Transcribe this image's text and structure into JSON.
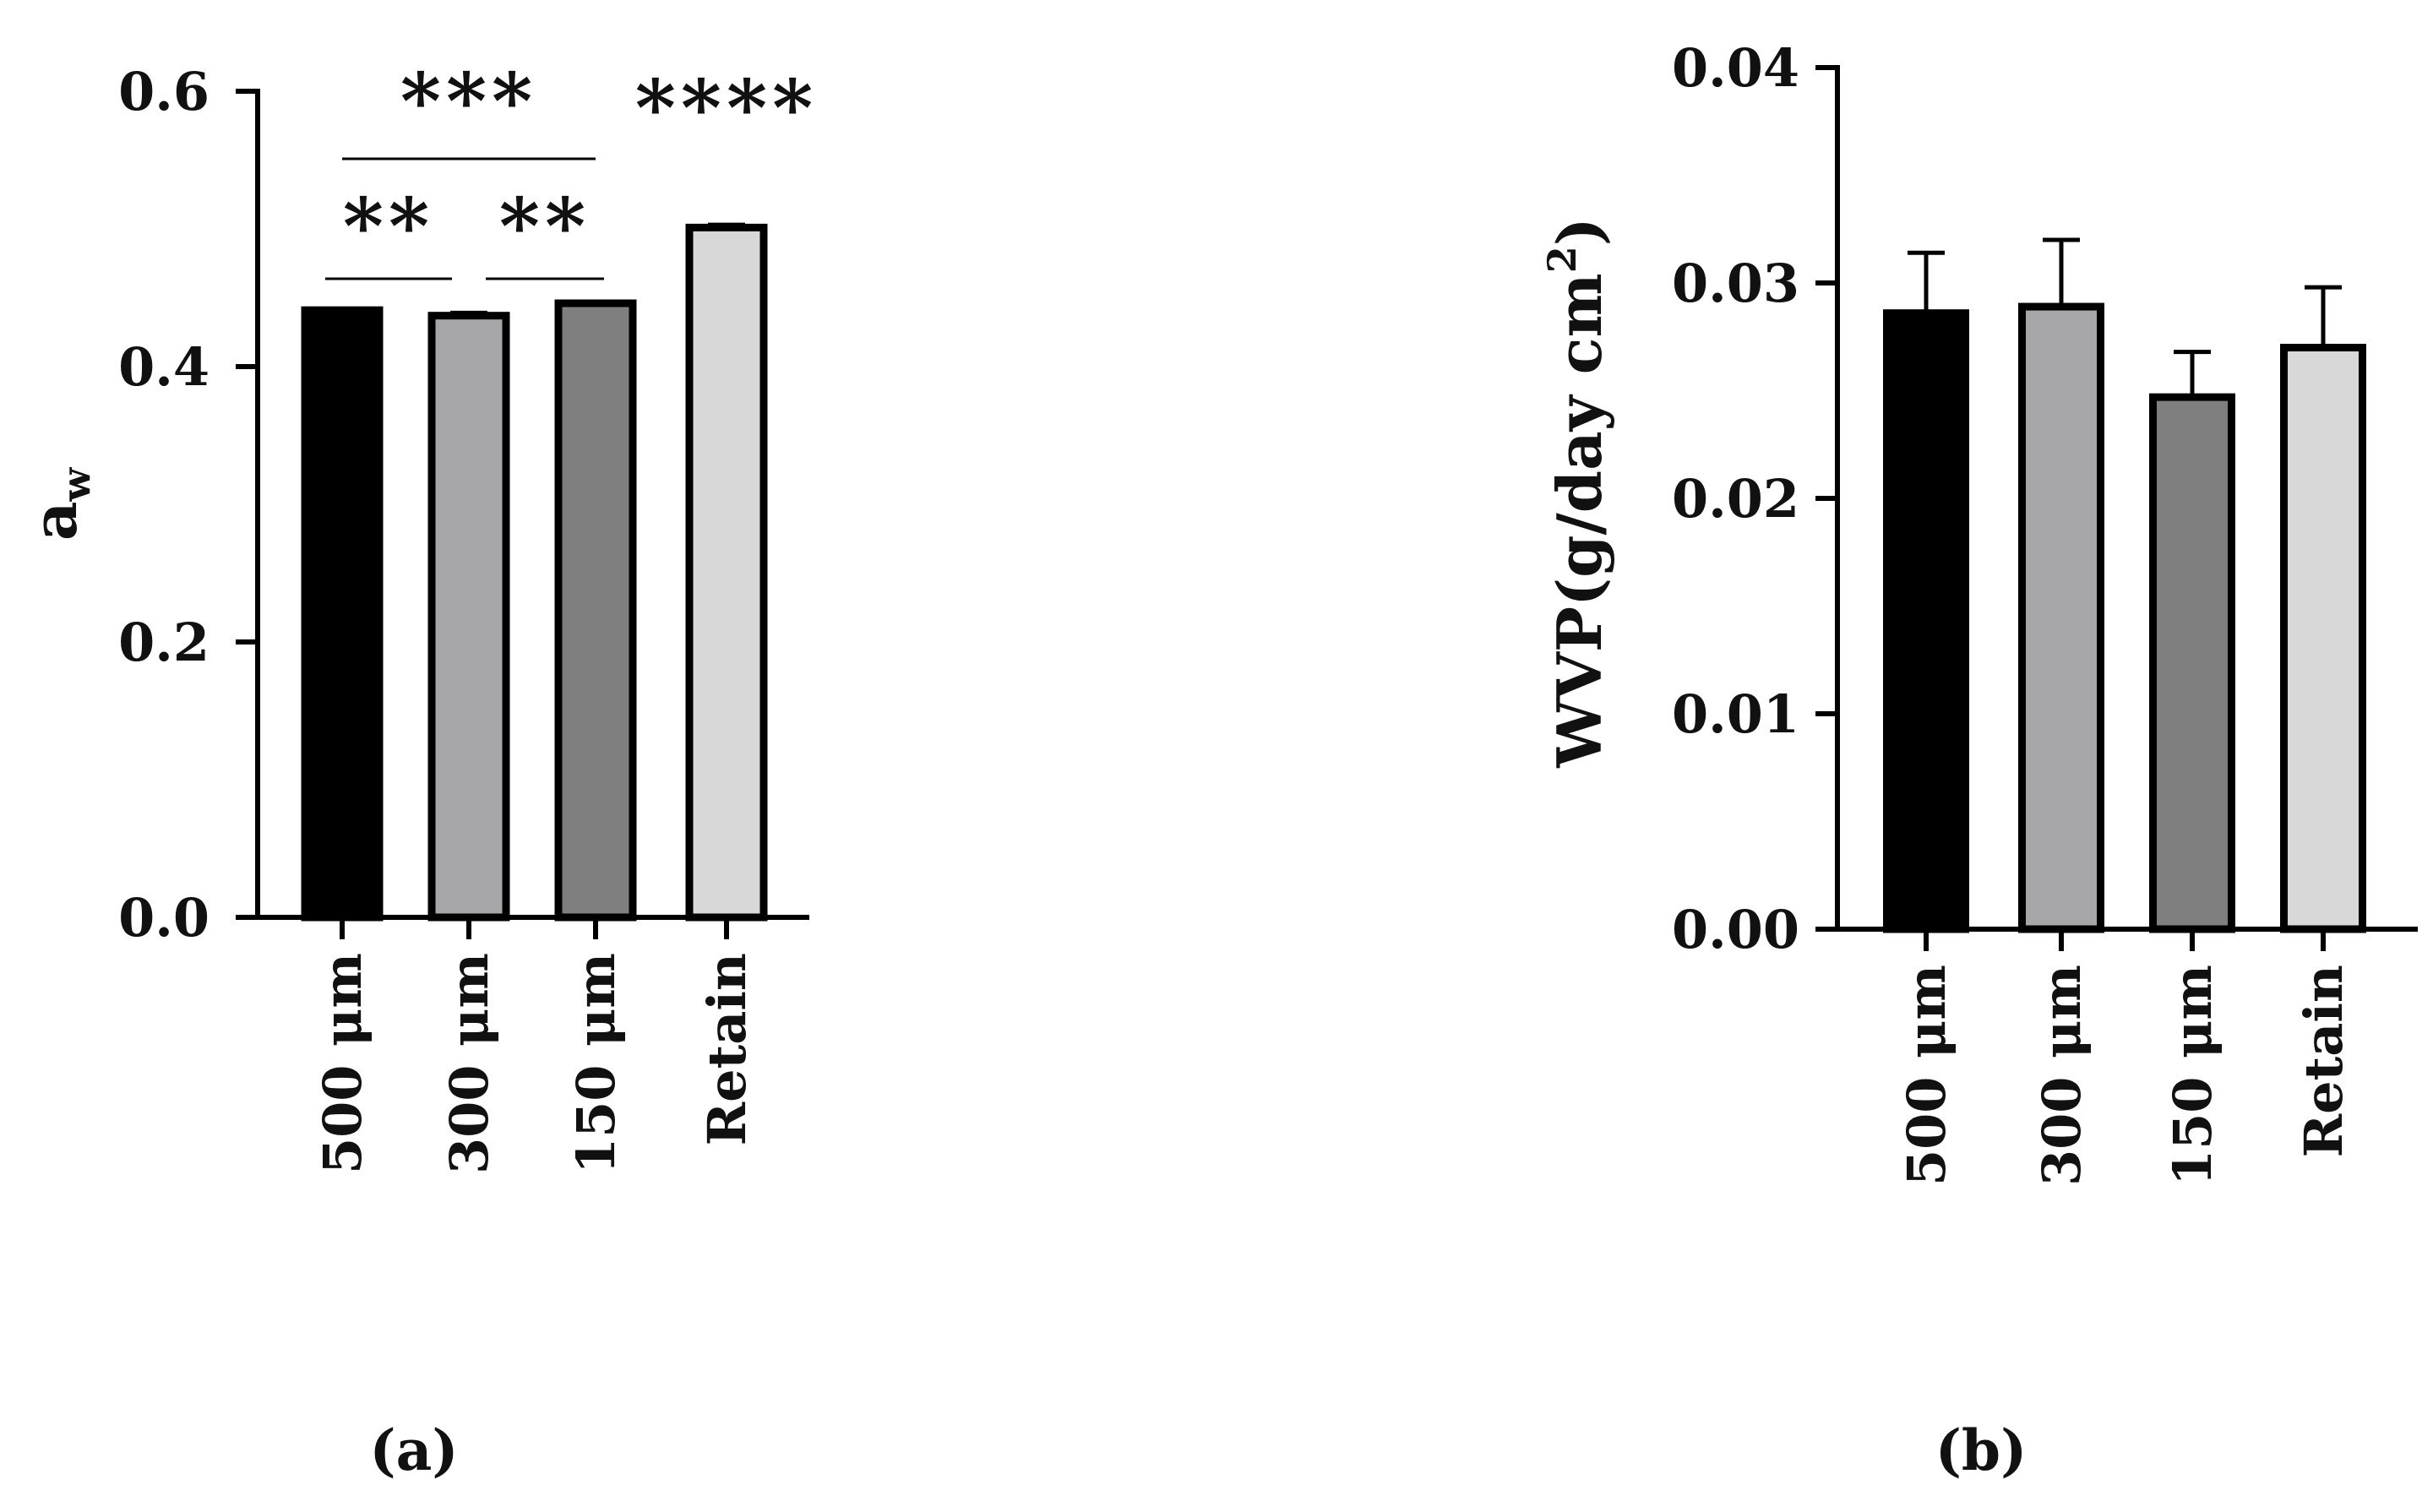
{
  "chart_data": [
    {
      "panel": "(a)",
      "type": "bar",
      "categories": [
        "500 μm",
        "300 μm",
        "150 μm",
        "Retain"
      ],
      "values": [
        0.441,
        0.437,
        0.446,
        0.501
      ],
      "errors": [
        0.0,
        0.002,
        0.0,
        0.002
      ],
      "colors": [
        "#000000",
        "#a7a7a9",
        "#7f7f7f",
        "#d8d8d8"
      ],
      "ylabel_main": "a",
      "ylabel_sub": "w",
      "ylim": [
        0,
        0.6
      ],
      "yticks": [
        0.0,
        0.2,
        0.4,
        0.6
      ],
      "ytick_labels": [
        "0.0",
        "0.2",
        "0.4",
        "0.6"
      ],
      "significance": [
        {
          "from": 0,
          "to": 2,
          "label": "***",
          "line": true
        },
        {
          "from": 0,
          "to": 1,
          "label": "**",
          "line": true
        },
        {
          "from": 1,
          "to": 2,
          "label": "**",
          "line": true
        },
        {
          "from": 3,
          "to": 3,
          "label": "****",
          "line": false
        }
      ]
    },
    {
      "panel": "(b)",
      "type": "bar",
      "categories": [
        "500 μm",
        "300 μm",
        "150 μm",
        "Retain"
      ],
      "values": [
        0.0286,
        0.0289,
        0.0247,
        0.027
      ],
      "errors": [
        0.0028,
        0.0031,
        0.0021,
        0.0028
      ],
      "colors": [
        "#000000",
        "#a7a7a9",
        "#7f7f7f",
        "#d8d8d8"
      ],
      "ylabel_main": "WVP(g/day cm",
      "ylabel_sup": "2",
      "ylabel_end": ")",
      "ylim": [
        0,
        0.04
      ],
      "yticks": [
        0.0,
        0.01,
        0.02,
        0.03,
        0.04
      ],
      "ytick_labels": [
        "0.00",
        "0.01",
        "0.02",
        "0.03",
        "0.04"
      ],
      "significance": []
    }
  ]
}
